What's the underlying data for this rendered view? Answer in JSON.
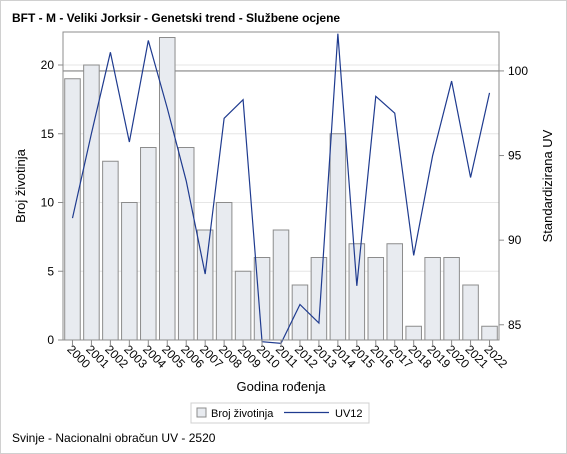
{
  "title": "BFT - M - Veliki Jorksir - Genetski trend - Službene ocjene",
  "footnote": "Svinje - Nacionalni obračun UV - 2520",
  "chart_data": {
    "type": "bar+line",
    "categories": [
      "2000",
      "2001",
      "2002",
      "2003",
      "2004",
      "2005",
      "2006",
      "2007",
      "2008",
      "2009",
      "2010",
      "2011",
      "2012",
      "2013",
      "2014",
      "2015",
      "2016",
      "2017",
      "2018",
      "2019",
      "2020",
      "2021",
      "2022"
    ],
    "xlabel": "Godina rođenja",
    "ylabel_left": "Broj životinja",
    "ylabel_right": "Standardizirana UV",
    "ylim_left": [
      0,
      22.4
    ],
    "ylim_right": [
      84.1,
      102.3
    ],
    "yticks_left": [
      0,
      5,
      10,
      15,
      20
    ],
    "yticks_right": [
      85,
      90,
      95,
      100
    ],
    "reference_line_right": 100,
    "grid": true,
    "series": [
      {
        "name": "Broj životinja",
        "type": "bar",
        "axis": "left",
        "color": "#e8ebf0",
        "values": [
          19,
          20,
          13,
          10,
          14,
          22,
          14,
          8,
          10,
          5,
          6,
          8,
          4,
          6,
          15,
          7,
          6,
          7,
          1,
          6,
          6,
          4,
          1
        ]
      },
      {
        "name": "UV12",
        "type": "line",
        "axis": "right",
        "color": "#1f3b8f",
        "values": [
          91.3,
          96.3,
          101.1,
          95.8,
          101.8,
          97.8,
          93.5,
          88.0,
          97.2,
          98.3,
          84.0,
          83.9,
          86.2,
          85.1,
          102.2,
          87.3,
          98.5,
          97.5,
          89.1,
          95.0,
          99.4,
          93.7,
          98.7
        ]
      }
    ],
    "legend_position": "bottom-center"
  }
}
